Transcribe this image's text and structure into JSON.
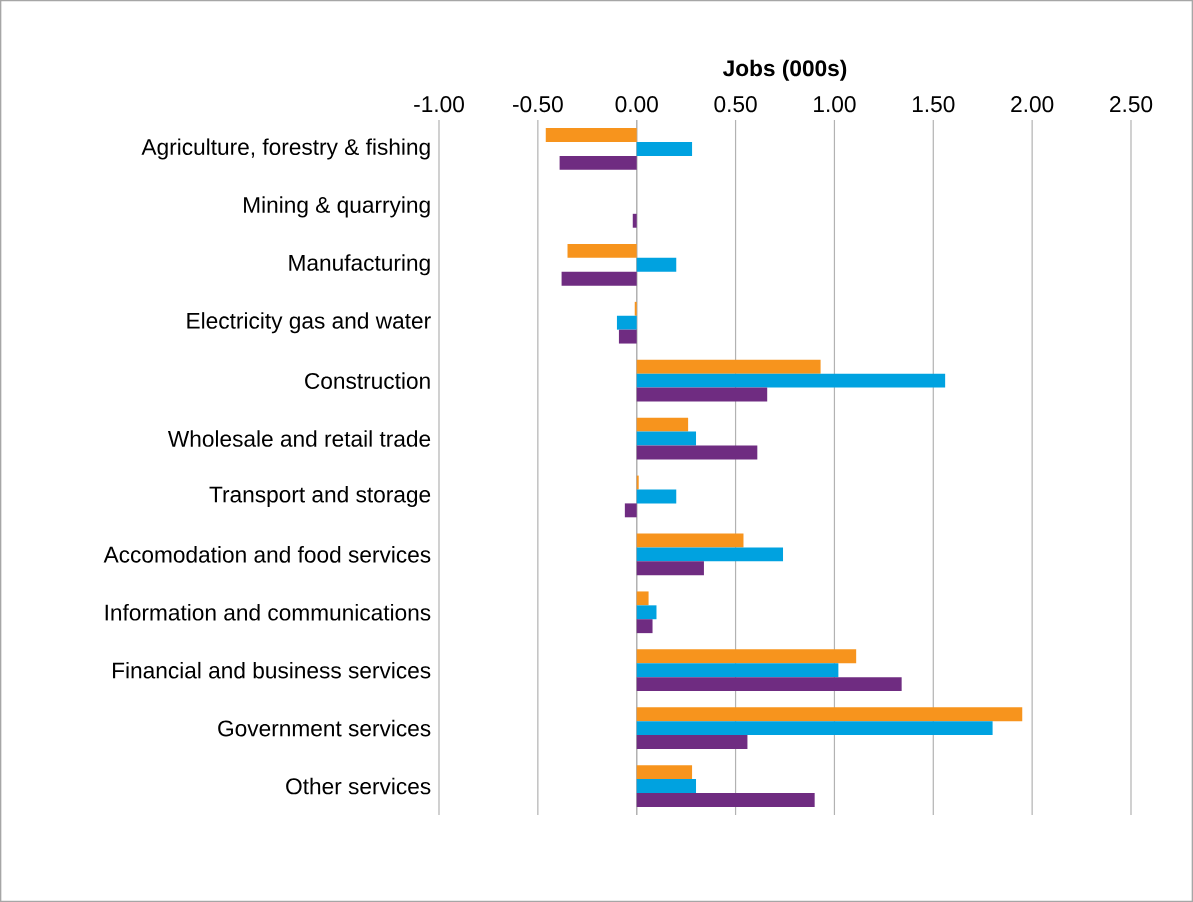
{
  "chart_data": {
    "type": "bar",
    "orientation": "horizontal",
    "xlabel": "Jobs (000s)",
    "categories": [
      "Agriculture, forestry & fishing",
      "Mining & quarrying",
      "Manufacturing",
      "Electricity gas and water",
      "Construction",
      "Wholesale and retail trade",
      "Transport and storage",
      "Accomodation and food services",
      "Information and communications",
      "Financial and business services",
      "Government services",
      "Other services"
    ],
    "series": [
      {
        "color": "#F7941D",
        "values": [
          -0.46,
          0,
          -0.35,
          -0.01,
          0.93,
          0.26,
          0.01,
          0.54,
          0.06,
          1.11,
          1.95,
          0.28
        ]
      },
      {
        "color": "#00A2E0",
        "values": [
          0.28,
          0,
          0.2,
          -0.1,
          1.56,
          0.3,
          0.2,
          0.74,
          0.1,
          1.02,
          1.8,
          0.3
        ]
      },
      {
        "color": "#6F2C81",
        "values": [
          -0.39,
          -0.02,
          -0.38,
          -0.09,
          0.66,
          0.61,
          -0.06,
          0.34,
          0.08,
          1.34,
          0.56,
          0.9
        ]
      }
    ],
    "xlim": [
      -1,
      2.5
    ],
    "xticks": [
      {
        "value": -1,
        "label": "-1.00"
      },
      {
        "value": -0.5,
        "label": "-0.50"
      },
      {
        "value": 0,
        "label": "0.00"
      },
      {
        "value": 0.5,
        "label": "0.50"
      },
      {
        "value": 1,
        "label": "1.00"
      },
      {
        "value": 1.5,
        "label": "1.50"
      },
      {
        "value": 2,
        "label": "2.00"
      },
      {
        "value": 2.5,
        "label": "2.50"
      }
    ],
    "grid": "x"
  }
}
